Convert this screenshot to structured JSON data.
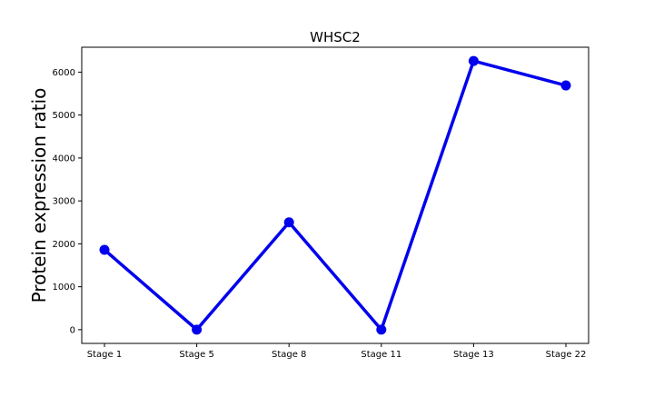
{
  "chart_data": {
    "type": "line",
    "title": "WHSC2",
    "xlabel": "",
    "ylabel": "Protein expression ratio",
    "categories": [
      "Stage 1",
      "Stage 5",
      "Stage 8",
      "Stage 11",
      "Stage 13",
      "Stage 22"
    ],
    "series": [
      {
        "values": [
          1860,
          0,
          2500,
          0,
          6260,
          5690
        ],
        "color": "#0000ee",
        "marker": "circle"
      }
    ],
    "ylim": [
      -320,
      6580
    ],
    "yticks": [
      0,
      1000,
      2000,
      3000,
      4000,
      5000,
      6000
    ],
    "grid": false,
    "legend": "none"
  }
}
